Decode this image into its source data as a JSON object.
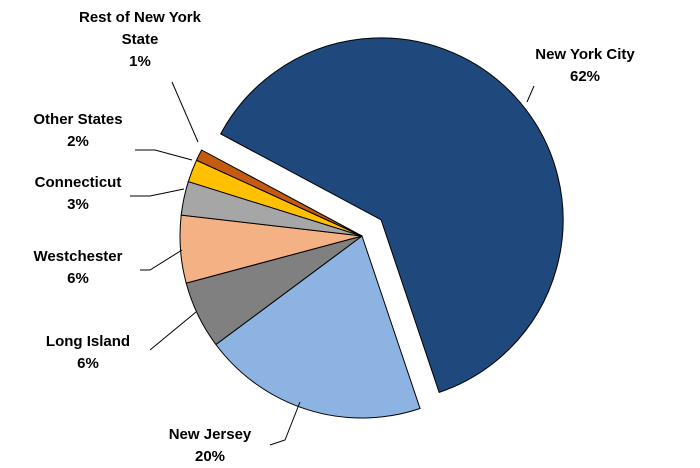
{
  "chart_data": {
    "type": "pie",
    "categories": [
      "New York City",
      "New Jersey",
      "Long Island",
      "Westchester",
      "Connecticut",
      "Other States",
      "Rest of New York State"
    ],
    "values": [
      62,
      20,
      6,
      6,
      3,
      2,
      1
    ],
    "value_labels": [
      "62%",
      "20%",
      "6%",
      "6%",
      "3%",
      "2%",
      "1%"
    ],
    "colors": [
      "#1f497d",
      "#8db3e2",
      "#808080",
      "#f4b183",
      "#a6a6a6",
      "#ffc000",
      "#c55a11"
    ]
  }
}
